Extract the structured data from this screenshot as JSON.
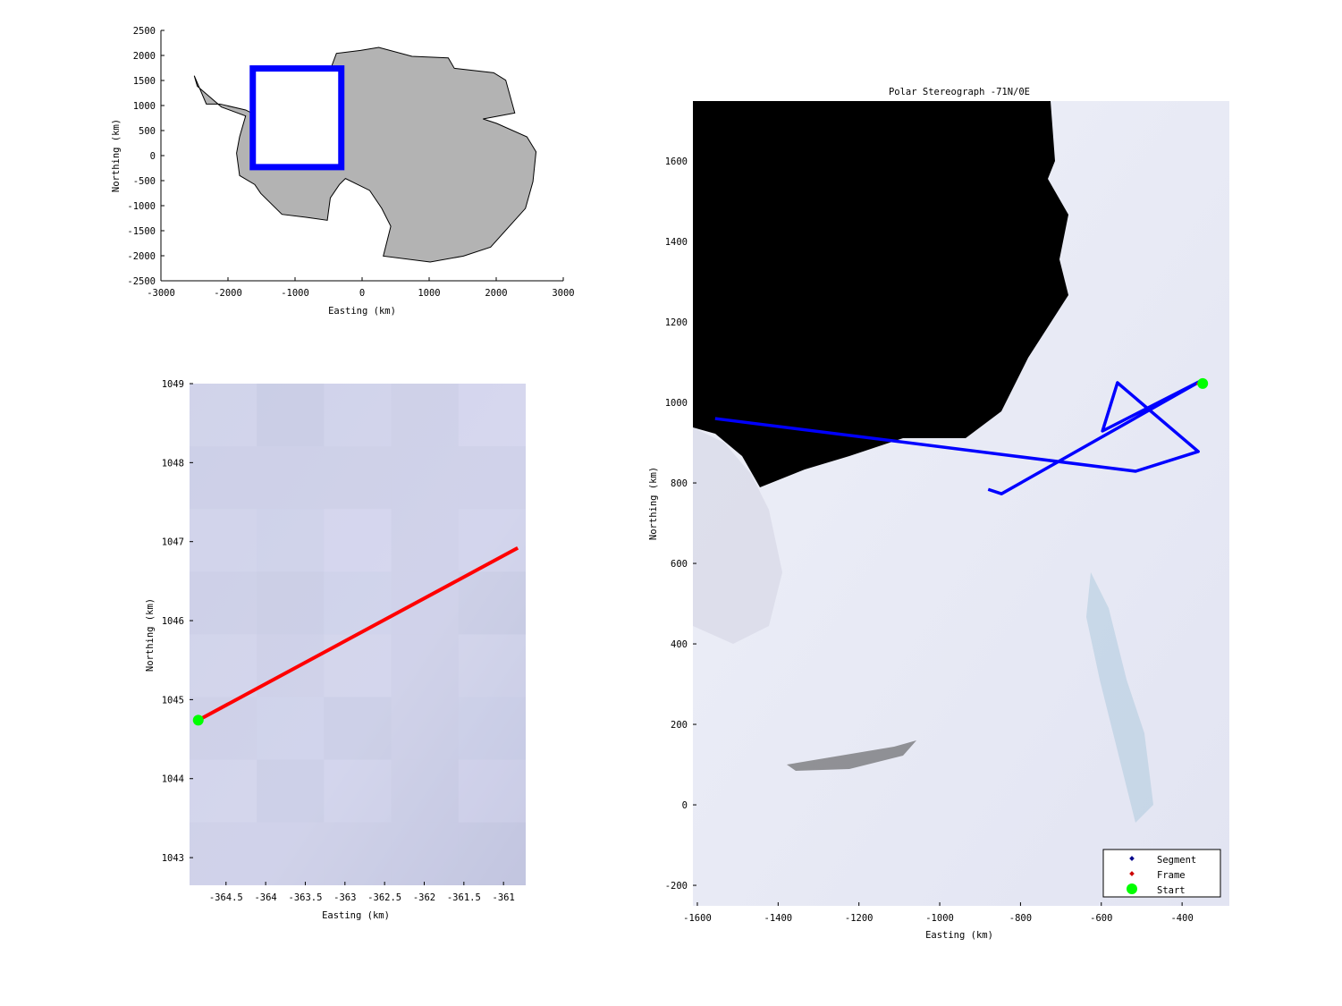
{
  "chart_data": [
    {
      "type": "line",
      "title": "",
      "xlabel": "Easting (km)",
      "ylabel": "Northing (km)",
      "xlim": [
        -3000,
        3000
      ],
      "ylim": [
        -2500,
        2500
      ],
      "xticks": [
        "-3000",
        "-2000",
        "-1000",
        "0",
        "1000",
        "2000",
        "3000"
      ],
      "xtick_values": [
        -3000,
        -2000,
        -1000,
        0,
        1000,
        2000,
        3000
      ],
      "yticks": [
        "2500",
        "2000",
        "1500",
        "1000",
        "500",
        "0",
        "-500",
        "-1000",
        "-1500",
        "-2000",
        "-2500"
      ],
      "ytick_values": [
        2500,
        2000,
        1500,
        1000,
        500,
        0,
        -500,
        -1000,
        -1500,
        -2000,
        -2500
      ],
      "grid": false,
      "continent_fill": "#b3b3b3",
      "continent_outline": [
        [
          -2503,
          1595
        ],
        [
          -2323,
          1030
        ],
        [
          -2120,
          1030
        ],
        [
          -1737,
          911
        ],
        [
          -1466,
          732
        ],
        [
          -1398,
          375
        ],
        [
          -1511,
          315
        ],
        [
          -1286,
          167
        ],
        [
          -1105,
          256
        ],
        [
          -699,
          435
        ],
        [
          -564,
          970
        ],
        [
          -744,
          1089
        ],
        [
          -699,
          1387
        ],
        [
          -474,
          1714
        ],
        [
          -383,
          2042
        ],
        [
          -23,
          2101
        ],
        [
          248,
          2161
        ],
        [
          744,
          1982
        ],
        [
          1285,
          1952
        ],
        [
          1375,
          1744
        ],
        [
          1962,
          1655
        ],
        [
          2142,
          1506
        ],
        [
          2277,
          851
        ],
        [
          1804,
          732
        ],
        [
          2007,
          643
        ],
        [
          2458,
          375
        ],
        [
          2594,
          77
        ],
        [
          2548,
          -518
        ],
        [
          2436,
          -1054
        ],
        [
          1917,
          -1827
        ],
        [
          1511,
          -2006
        ],
        [
          1015,
          -2125
        ],
        [
          316,
          -2006
        ],
        [
          428,
          -1411
        ],
        [
          293,
          -1054
        ],
        [
          113,
          -696
        ],
        [
          -248,
          -458
        ],
        [
          -338,
          -577
        ],
        [
          -474,
          -845
        ],
        [
          -519,
          -1292
        ],
        [
          -834,
          -1232
        ],
        [
          -1195,
          -1173
        ],
        [
          -1511,
          -756
        ],
        [
          -1601,
          -577
        ],
        [
          -1827,
          -399
        ],
        [
          -1872,
          48
        ],
        [
          -1827,
          375
        ],
        [
          -1737,
          792
        ],
        [
          -2097,
          970
        ],
        [
          -2458,
          1387
        ]
      ],
      "region_box": {
        "x": [
          -1630,
          -310
        ],
        "y": [
          -230,
          1740
        ],
        "color": "#0000ff"
      }
    },
    {
      "type": "line",
      "title": "",
      "xlabel": "Easting (km)",
      "ylabel": "Northing (km)",
      "xlim": [
        -364.96,
        -360.72
      ],
      "ylim": [
        1042.65,
        1049
      ],
      "xticks": [
        "-364.5",
        "-364",
        "-363.5",
        "-363",
        "-362.5",
        "-362",
        "-361.5",
        "-361"
      ],
      "xtick_values": [
        -364.5,
        -364,
        -363.5,
        -363,
        -362.5,
        -362,
        -361.5,
        -361
      ],
      "yticks": [
        "1049",
        "1048",
        "1047",
        "1046",
        "1045",
        "1044",
        "1043"
      ],
      "ytick_values": [
        1049,
        1048,
        1047,
        1046,
        1045,
        1044,
        1043
      ],
      "grid": false,
      "series": [
        {
          "name": "Frame",
          "color": "#ff0000",
          "x": [
            -364.85,
            -360.82
          ],
          "y": [
            1044.74,
            1046.92
          ]
        },
        {
          "name": "Start",
          "color": "#00ff00",
          "x": [
            -364.85
          ],
          "y": [
            1044.74
          ]
        }
      ]
    },
    {
      "type": "line",
      "title": "Polar Stereograph -71N/0E",
      "xlabel": "Easting (km)",
      "ylabel": "Northing (km)",
      "xlim": [
        -1611,
        -283
      ],
      "ylim": [
        -251,
        1749
      ],
      "xticks": [
        "-1600",
        "-1400",
        "-1200",
        "-1000",
        "-800",
        "-600",
        "-400"
      ],
      "xtick_values": [
        -1600,
        -1400,
        -1200,
        -1000,
        -800,
        -600,
        -400
      ],
      "yticks": [
        "1600",
        "1400",
        "1200",
        "1000",
        "800",
        "600",
        "400",
        "200",
        "0",
        "-200"
      ],
      "ytick_values": [
        1600,
        1400,
        1200,
        1000,
        800,
        600,
        400,
        200,
        0,
        -200
      ],
      "grid": false,
      "legend_position": "bottom-right",
      "series": [
        {
          "name": "Segment",
          "color": "#0000ff",
          "x": [
            -1556,
            -515,
            -360,
            -560,
            -597,
            -349,
            -847,
            -880
          ],
          "y": [
            960,
            829,
            878,
            1049,
            929,
            1056,
            773,
            784
          ]
        },
        {
          "name": "Frame",
          "color": "#ff0000",
          "x": [
            -364.85,
            -360.82
          ],
          "y": [
            1044.74,
            1046.92
          ]
        },
        {
          "name": "Start",
          "color": "#00ff00",
          "x": [
            -349
          ],
          "y": [
            1047
          ]
        }
      ]
    }
  ]
}
